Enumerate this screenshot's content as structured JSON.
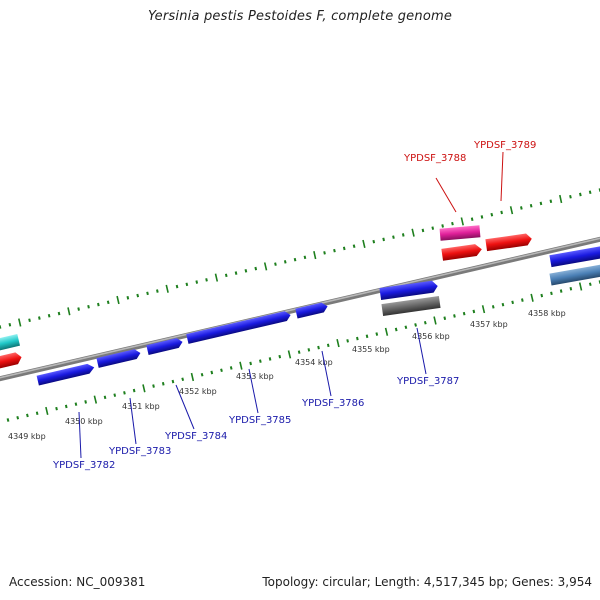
{
  "title": "Yersinia pestis Pestoides F, complete genome",
  "accession": "Accession: NC_009381",
  "summary": "Topology: circular; Length: 4,517,345 bp; Genes: 3,954",
  "colors": {
    "backbone": "#8c8c8c",
    "tick": "#1e7f1e",
    "label_blue": "#1a1aaa",
    "label_red": "#cc1111",
    "gene_blue": "#1a1ae0",
    "gene_red": "#ee1111",
    "gene_magenta": "#e0209a",
    "gene_cyan": "#20c8c8",
    "gene_gray": "#666666",
    "gene_steel": "#4a7fb5"
  },
  "scale_labels": [
    "4349 kbp",
    "4350 kbp",
    "4351 kbp",
    "4352 kbp",
    "4353 kbp",
    "4354 kbp",
    "4355 kbp",
    "4356 kbp",
    "4357 kbp",
    "4358 kbp"
  ],
  "genes_bottom": [
    "YPDSF_3782",
    "YPDSF_3783",
    "YPDSF_3784",
    "YPDSF_3785",
    "YPDSF_3786",
    "YPDSF_3787"
  ],
  "genes_top": [
    "YPDSF_3788",
    "YPDSF_3789"
  ]
}
